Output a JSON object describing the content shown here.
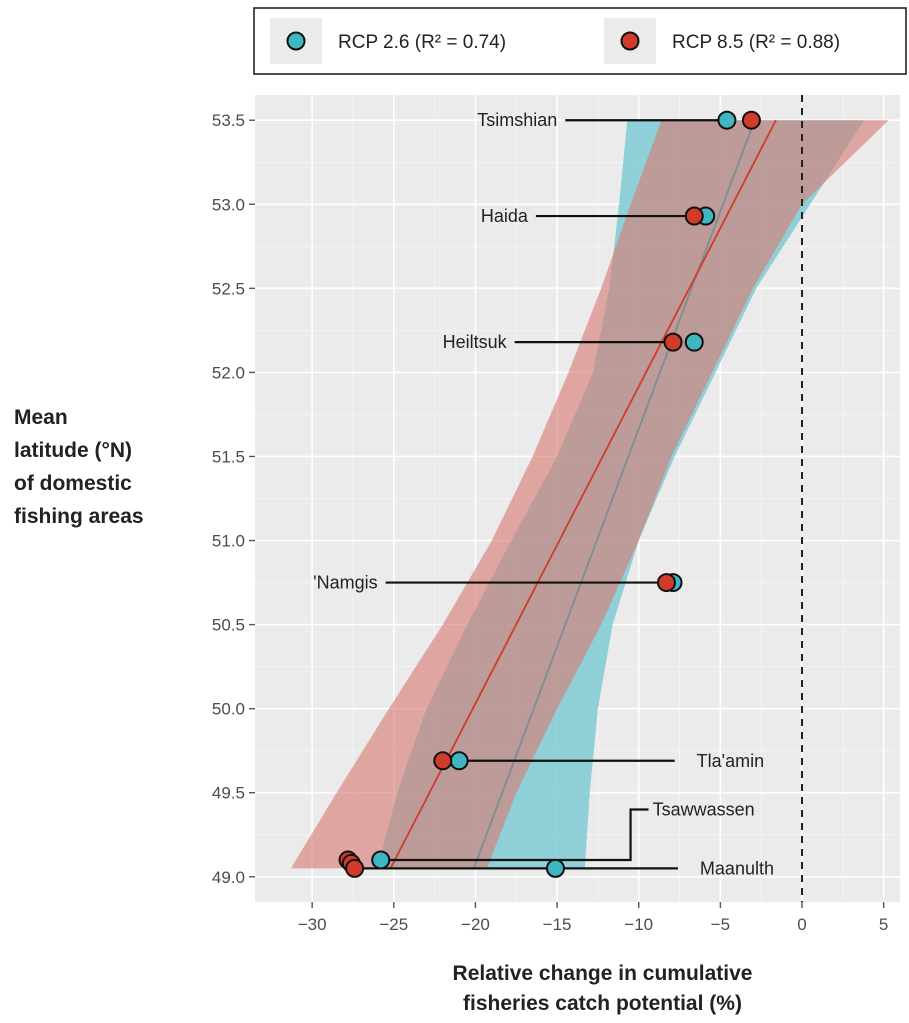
{
  "chart_data": {
    "type": "scatter",
    "xlabel": [
      "Relative change in cumulative",
      "fisheries catch potential (%)"
    ],
    "ylabel": [
      "Mean",
      "latitude (°N)",
      "of domestic",
      "fishing areas"
    ],
    "xlim": [
      -33.5,
      6
    ],
    "ylim": [
      48.85,
      53.65
    ],
    "x_ticks": [
      -30,
      -25,
      -20,
      -15,
      -10,
      -5,
      0,
      5
    ],
    "x_tick_labels": [
      "−30",
      "−25",
      "−20",
      "−15",
      "−10",
      "−5",
      "0",
      "5"
    ],
    "y_ticks": [
      49.0,
      49.5,
      50.0,
      50.5,
      51.0,
      51.5,
      52.0,
      52.5,
      53.0,
      53.5
    ],
    "y_tick_labels": [
      "49.0",
      "49.5",
      "50.0",
      "50.5",
      "51.0",
      "51.5",
      "52.0",
      "52.5",
      "53.0",
      "53.5"
    ],
    "reference_line_x": 0,
    "grid": true,
    "legend_position": "top",
    "series": [
      {
        "name": "RCP 2.6 (R² = 0.74)",
        "color": "#3fb7c3",
        "band_color": "#7fcad4",
        "points": [
          {
            "group": "Tsimshian",
            "x": -4.6,
            "y": 53.5
          },
          {
            "group": "Haida",
            "x": -5.9,
            "y": 52.93
          },
          {
            "group": "Heiltsuk",
            "x": -6.6,
            "y": 52.18
          },
          {
            "group": "'Namgis",
            "x": -7.9,
            "y": 50.75
          },
          {
            "group": "Tla'amin",
            "x": -21.0,
            "y": 49.69
          },
          {
            "group": "Tsawwassen",
            "x": -25.8,
            "y": 49.1
          },
          {
            "group": "Maanulth",
            "x": -15.1,
            "y": 49.05
          }
        ],
        "fit": {
          "x": [
            -20.1,
            -2.9
          ],
          "y": [
            49.05,
            53.5
          ]
        },
        "band": {
          "y": [
            49.05,
            49.5,
            50.0,
            50.5,
            51.0,
            51.5,
            52.0,
            52.5,
            53.0,
            53.5
          ],
          "lower": [
            -26.0,
            -24.8,
            -23.0,
            -20.5,
            -17.8,
            -15.0,
            -12.8,
            -11.8,
            -11.2,
            -10.7
          ],
          "upper": [
            -13.3,
            -13.0,
            -12.5,
            -11.6,
            -10.0,
            -7.8,
            -5.3,
            -2.8,
            0.5,
            3.8
          ]
        }
      },
      {
        "name": "RCP 8.5 (R² = 0.88)",
        "color": "#d13b2a",
        "band_color": "#d97a72",
        "points": [
          {
            "group": "Tsimshian",
            "x": -3.1,
            "y": 53.5
          },
          {
            "group": "Haida",
            "x": -6.6,
            "y": 52.93
          },
          {
            "group": "Heiltsuk",
            "x": -7.9,
            "y": 52.18
          },
          {
            "group": "'Namgis",
            "x": -8.3,
            "y": 50.75
          },
          {
            "group": "Tla'amin",
            "x": -22.0,
            "y": 49.69
          },
          {
            "group": "Tsawwassen",
            "x": -27.8,
            "y": 49.1
          },
          {
            "group": "Tsawwassen",
            "x": -27.6,
            "y": 49.08
          },
          {
            "group": "Maanulth",
            "x": -27.4,
            "y": 49.05
          }
        ],
        "fit": {
          "x": [
            -25.2,
            -1.6
          ],
          "y": [
            49.05,
            53.5
          ]
        },
        "band": {
          "y": [
            49.05,
            49.5,
            50.0,
            50.5,
            51.0,
            51.5,
            52.0,
            52.5,
            53.0,
            53.5
          ],
          "lower": [
            -31.3,
            -28.5,
            -25.3,
            -22.0,
            -19.0,
            -16.5,
            -14.3,
            -12.3,
            -10.5,
            -8.6
          ],
          "upper": [
            -19.3,
            -17.5,
            -15.0,
            -12.3,
            -10.0,
            -8.0,
            -5.5,
            -3.0,
            0.0,
            5.3
          ]
        }
      }
    ],
    "labels": [
      {
        "text": "Tsimshian",
        "y": 53.5,
        "x_start": -14.5,
        "x_end": -4.6,
        "side": "left"
      },
      {
        "text": "Haida",
        "y": 52.93,
        "x_start": -16.3,
        "x_end": -6.6,
        "side": "left"
      },
      {
        "text": "Heiltsuk",
        "y": 52.18,
        "x_start": -17.6,
        "x_end": -7.9,
        "side": "left"
      },
      {
        "text": "'Namgis",
        "y": 50.75,
        "x_start": -25.5,
        "x_end": -8.3,
        "side": "left"
      },
      {
        "text": "Tla'amin",
        "y": 49.69,
        "x_start": -21.0,
        "x_end": -7.8,
        "side": "right"
      },
      {
        "text": "Maanulth",
        "y": 49.05,
        "x_start": -27.4,
        "x_end": -7.6,
        "side": "right"
      },
      {
        "text": "Tsawwassen",
        "y": 49.1,
        "x_start": -25.8,
        "x_end": -10.5,
        "side": "right",
        "bracket_y": 49.4
      }
    ]
  }
}
